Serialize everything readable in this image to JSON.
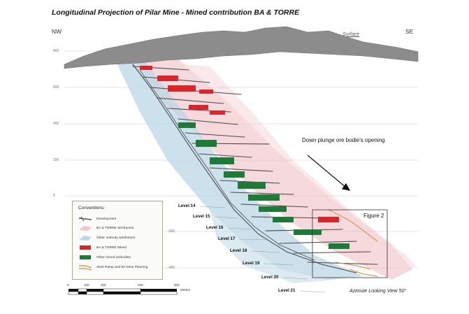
{
  "title": "Longitudinal Projection of Pilar Mine - Mined contribution BA & TORRE",
  "directions": {
    "left": "NW",
    "right": "SE"
  },
  "surface_label": "Surface",
  "elevations": [
    "600",
    "400",
    "200",
    "0",
    "-200",
    "-400"
  ],
  "elevation_top": "800",
  "levels": [
    "Level 14",
    "Level 15",
    "Level 16",
    "Level 17",
    "Level 18",
    "Level 19",
    "Level 20",
    "Level 21"
  ],
  "annotation": "Down plunge ore bodie's opening",
  "figure_label": "Figure 2",
  "azimuth": "Azimute Looking View 50°",
  "legend": {
    "title": "Conventions:",
    "items": [
      "Development",
      "BA & TORRE wireframes",
      "Other orebody wireframes",
      "BA & TORRE Mined",
      "Other mined orebodies",
      "2025 Ramp and BA Mine Planning"
    ]
  },
  "scale": {
    "ticks": [
      "0",
      "100",
      "200",
      "400",
      "600"
    ],
    "unit": "Meters"
  },
  "colors": {
    "terrain": "#8c8c8c",
    "development": "#4a4a4a",
    "ba_torre_wire": "#f2c6cc",
    "other_wire": "#bcd7e6",
    "ba_torre_mined": "#d8262c",
    "other_mined": "#1f7a3a",
    "planning": "#d29a52"
  }
}
